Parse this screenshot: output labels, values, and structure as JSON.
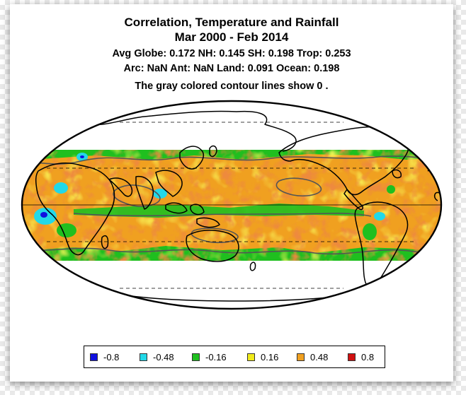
{
  "title": {
    "line1": "Correlation, Temperature and Rainfall",
    "line2": "Mar 2000 - Feb 2014",
    "stats1": "Avg Globe: 0.172  NH: 0.145  SH: 0.198  Trop: 0.253",
    "stats2": "Arc: NaN  Ant: NaN  Land: 0.091 Ocean: 0.198",
    "note": "The gray colored contour lines show 0 ."
  },
  "legend": [
    {
      "label": "-0.8",
      "color": "#1010e0"
    },
    {
      "label": "-0.48",
      "color": "#22d8e8"
    },
    {
      "label": "-0.16",
      "color": "#1fbf1f"
    },
    {
      "label": "0.16",
      "color": "#f0ea1a"
    },
    {
      "label": "0.48",
      "color": "#f0a020"
    },
    {
      "label": "0.8",
      "color": "#d01010"
    }
  ],
  "colors": {
    "ocean_base": "#f0a020",
    "band_edge": "#1fbf1f",
    "high": "#d01010",
    "neutral": "#f0ea1a",
    "land_outline": "#000000",
    "zero_contour": "#555555"
  }
}
